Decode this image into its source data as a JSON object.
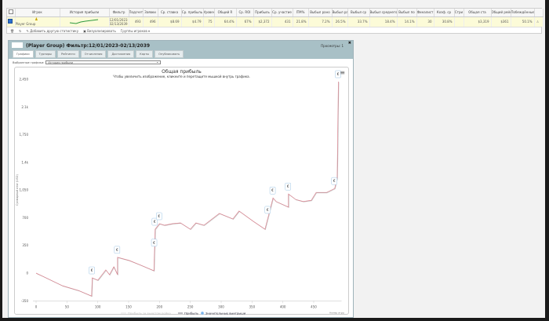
{
  "stats_table": {
    "headers": [
      "",
      "Игрок",
      "История прибыли",
      "Фильтр",
      "Подсчет",
      "Заявки",
      "Ср. ставка",
      "Ср. прибыль",
      "Уровень",
      "Общий R",
      "Ср. ROI",
      "Прибыль",
      "Ср. участие",
      "ITM%",
      "Выбыл рано",
      "Выбыл ран",
      "Выбыл ср",
      "Выбыл среднего",
      "Выбыл по",
      "Финалист",
      "Коэф. ср",
      "Стри",
      "Общая ста",
      "Общий рейк",
      "Побеждённые пс",
      ""
    ],
    "row": {
      "player": "Player Group",
      "filter_from": "12/01/2023",
      "filter_to": "02/13/2039",
      "values": [
        "493",
        "496",
        "$8.69",
        "$4.79",
        "75",
        "64.4%",
        "67%",
        "$2,372",
        "431",
        "21.8%",
        "7.2%",
        "26.5%",
        "33.7%",
        "18.4%",
        "14.1%",
        "30",
        "30.8%",
        "",
        "$3,319",
        "$361",
        "50.1%"
      ]
    },
    "toolbar": {
      "add_stats": "Добавить другую статистику",
      "visualize": "Визуализировать",
      "groups": "Группы игроков ▾"
    }
  },
  "panel": {
    "title": "(Player Group) Фильтр:12/01/2023-02/13/2039",
    "views": "Просмотры: 1",
    "tabs": [
      "Графики",
      "Турниры",
      "Рейтинги",
      "Отчисления",
      "Достижения",
      "Карты",
      "Опубликовать"
    ],
    "select_label": "Выбранные графики:",
    "select_value": "История прибыли"
  },
  "chart_data": {
    "type": "line",
    "title": "Общая прибыль",
    "subtitle": "Чтобы увеличить изображение, кликните и перетащите мышкой внутрь графика.",
    "ylabel": "Суммарный итог (USD)",
    "xlabel": "Номер игры",
    "xlim": [
      0,
      490
    ],
    "ylim": [
      -350,
      2450
    ],
    "xticks": [
      "0",
      "50",
      "100",
      "150",
      "200",
      "250",
      "300",
      "350",
      "400",
      "450"
    ],
    "yticks": [
      "-350",
      "0",
      "350",
      "700",
      "1,050",
      "1.4k",
      "1,750",
      "2.1k",
      "2,450"
    ],
    "legend": [
      "Прибыль за вычетом рейка",
      "Прибыль",
      "Значительные выигрыши"
    ],
    "legend_placement": "bottom",
    "series_color": "#d9828e",
    "x": [
      0,
      11,
      43,
      69,
      90,
      91,
      100,
      113,
      119,
      126,
      132,
      132,
      151,
      170,
      191,
      192,
      193,
      200,
      208,
      221,
      234,
      250,
      259,
      272,
      297,
      319,
      329,
      352,
      371,
      376,
      384,
      389,
      409,
      409,
      421,
      433,
      446,
      454,
      471,
      484,
      488,
      490
    ],
    "y": [
      0,
      -40,
      -160,
      -220,
      -290,
      -60,
      -90,
      40,
      -20,
      80,
      -20,
      200,
      160,
      100,
      30,
      290,
      555,
      625,
      605,
      625,
      635,
      555,
      635,
      605,
      755,
      685,
      785,
      655,
      555,
      705,
      950,
      905,
      835,
      1000,
      930,
      905,
      920,
      1020,
      1020,
      1070,
      1200,
      2420
    ],
    "big_wins_x": [
      91,
      132,
      192,
      193,
      200,
      376,
      384,
      409,
      484,
      490
    ]
  }
}
